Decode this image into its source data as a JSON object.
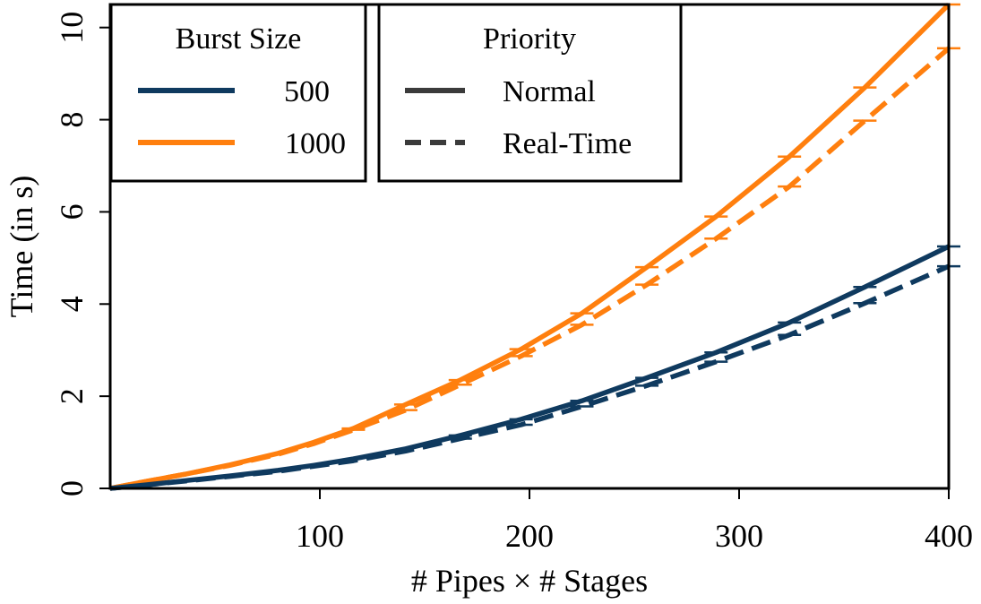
{
  "chart_data": {
    "type": "line",
    "xlabel": "# Pipes × # Stages",
    "ylabel": "Time (in s)",
    "xlim": [
      0,
      400
    ],
    "ylim": [
      0,
      10.5
    ],
    "x_ticks": [
      100,
      200,
      300,
      400
    ],
    "y_ticks": [
      0,
      2,
      4,
      6,
      8,
      10
    ],
    "grid": false,
    "colors": {
      "500": "#0f3a5f",
      "1000": "#ff7f0e",
      "legend_line": "#3b3b3b"
    },
    "legends": [
      {
        "title": "Burst Size",
        "placement": "top-left",
        "entries": [
          {
            "label": "500",
            "color": "#0f3a5f",
            "style": "solid"
          },
          {
            "label": "1000",
            "color": "#ff7f0e",
            "style": "solid"
          }
        ]
      },
      {
        "title": "Priority",
        "placement": "top-center",
        "entries": [
          {
            "label": "Normal",
            "color": "#3b3b3b",
            "style": "solid"
          },
          {
            "label": "Real-Time",
            "color": "#3b3b3b",
            "style": "dashed"
          }
        ]
      }
    ],
    "series": [
      {
        "burst": "1000",
        "priority": "Normal",
        "color": "#ff7f0e",
        "dash": "solid",
        "x": [
          0,
          18,
          36,
          57,
          80,
          97,
          116,
          141,
          167,
          196,
          225,
          256,
          289,
          324,
          360,
          400
        ],
        "y": [
          0,
          0.16,
          0.31,
          0.51,
          0.76,
          1.0,
          1.3,
          1.82,
          2.35,
          3.02,
          3.8,
          4.8,
          5.9,
          7.2,
          8.7,
          10.5
        ],
        "errorbars_x": [
          116,
          141,
          167,
          196,
          225,
          256,
          289,
          324,
          360,
          400
        ]
      },
      {
        "burst": "1000",
        "priority": "Real-Time",
        "color": "#ff7f0e",
        "dash": "dashed",
        "x": [
          0,
          18,
          36,
          57,
          80,
          97,
          116,
          141,
          167,
          196,
          225,
          256,
          289,
          324,
          360,
          400
        ],
        "y": [
          0,
          0.16,
          0.31,
          0.5,
          0.74,
          0.97,
          1.27,
          1.7,
          2.25,
          2.87,
          3.55,
          4.42,
          5.42,
          6.55,
          7.98,
          9.55
        ],
        "errorbars_x": [
          116,
          141,
          167,
          196,
          225,
          256,
          289,
          324,
          360,
          400
        ]
      },
      {
        "burst": "500",
        "priority": "Normal",
        "color": "#0f3a5f",
        "dash": "solid",
        "x": [
          0,
          18,
          36,
          57,
          80,
          97,
          116,
          141,
          167,
          196,
          225,
          256,
          289,
          324,
          360,
          400
        ],
        "y": [
          0,
          0.08,
          0.17,
          0.27,
          0.39,
          0.5,
          0.64,
          0.86,
          1.15,
          1.5,
          1.9,
          2.4,
          2.95,
          3.6,
          4.37,
          5.25
        ],
        "errorbars_x": [
          167,
          196,
          225,
          256,
          289,
          324,
          360,
          400
        ]
      },
      {
        "burst": "500",
        "priority": "Real-Time",
        "color": "#0f3a5f",
        "dash": "dashed",
        "x": [
          0,
          18,
          36,
          57,
          80,
          97,
          116,
          141,
          167,
          196,
          225,
          256,
          289,
          324,
          360,
          400
        ],
        "y": [
          0,
          0.08,
          0.16,
          0.26,
          0.37,
          0.48,
          0.6,
          0.81,
          1.08,
          1.38,
          1.78,
          2.23,
          2.75,
          3.33,
          4.02,
          4.82
        ],
        "errorbars_x": [
          167,
          196,
          225,
          256,
          289,
          324,
          360,
          400
        ]
      }
    ]
  }
}
